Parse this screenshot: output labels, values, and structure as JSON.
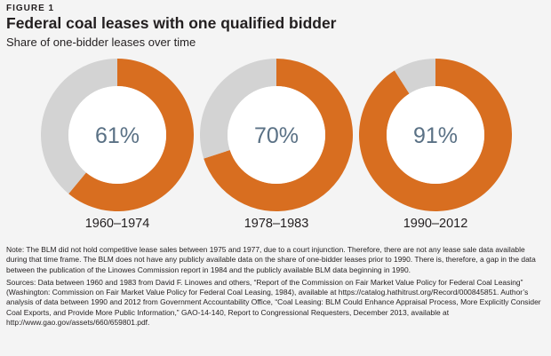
{
  "figure_label": "FIGURE 1",
  "title": "Federal coal leases with one qualified bidder",
  "subtitle": "Share of one-bidder leases over time",
  "colors": {
    "one_bidder": "#d86e20",
    "other": "#d3d3d3",
    "center_text": "#5a7185",
    "background": "#f4f4f4"
  },
  "chart_data": [
    {
      "type": "pie",
      "donut": true,
      "category": "1960–1974",
      "center_label": "61%",
      "values": [
        61,
        39
      ],
      "legend": "none"
    },
    {
      "type": "pie",
      "donut": true,
      "category": "1978–1983",
      "center_label": "70%",
      "values": [
        70,
        30
      ],
      "legend": "none"
    },
    {
      "type": "pie",
      "donut": true,
      "category": "1990–2012",
      "center_label": "91%",
      "values": [
        91,
        9
      ],
      "legend": "none"
    }
  ],
  "notes": {
    "note": "Note: The BLM did not hold competitive lease sales between 1975 and 1977, due to a court injunction. Therefore, there are not any lease sale data available during that time frame. The BLM does not have any publicly available data on the share of one-bidder leases prior to 1990. There is, therefore, a gap in the data between the publication of the Linowes Commission report in 1984 and the publicly available BLM data beginning in 1990.",
    "sources": "Sources: Data between 1960 and 1983 from David F. Linowes and others, “Report of the Commission on Fair Market Value Policy for Federal Coal Leasing” (Washington: Commission on Fair Market Value Policy for Federal Coal Leasing, 1984), available at https://catalog.hathitrust.org/Record/000845851. Author’s analysis of data between 1990 and 2012 from Government Accountability Office, “Coal Leasing: BLM Could Enhance Appraisal Process, More Explicitly Consider Coal Exports, and Provide More Public Information,” GAO-14-140, Report to Congressional Requesters, December 2013, available at http://www.gao.gov/assets/660/659801.pdf."
  }
}
